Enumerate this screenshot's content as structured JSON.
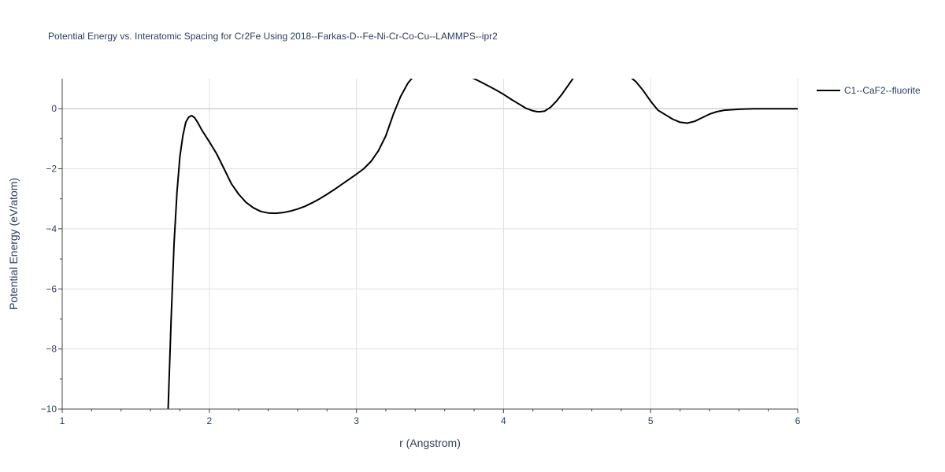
{
  "chart_data": {
    "type": "line",
    "title": "Potential Energy vs. Interatomic Spacing for Cr2Fe Using 2018--Farkas-D--Fe-Ni-Cr-Co-Cu--LAMMPS--ipr2",
    "xlabel": "r (Angstrom)",
    "ylabel": "Potential Energy (eV/atom)",
    "xlim": [
      1,
      6
    ],
    "ylim": [
      -10,
      1
    ],
    "x_ticks": [
      1,
      2,
      3,
      4,
      5,
      6
    ],
    "y_ticks": [
      0,
      -2,
      -4,
      -6,
      -8,
      -10
    ],
    "x_tick_labels": [
      "1",
      "2",
      "3",
      "4",
      "5",
      "6"
    ],
    "y_tick_labels": [
      "0",
      "−2",
      "−4",
      "−6",
      "−8",
      "−10"
    ],
    "grid": true,
    "legend_position": "top-right",
    "series": [
      {
        "name": "C1--CaF2--fluorite",
        "color": "#000000",
        "x": [
          1.72,
          1.74,
          1.76,
          1.78,
          1.8,
          1.82,
          1.84,
          1.86,
          1.88,
          1.9,
          1.92,
          1.95,
          2.0,
          2.05,
          2.1,
          2.15,
          2.2,
          2.25,
          2.3,
          2.35,
          2.4,
          2.45,
          2.5,
          2.55,
          2.6,
          2.65,
          2.7,
          2.75,
          2.8,
          2.85,
          2.9,
          2.95,
          3.0,
          3.05,
          3.1,
          3.15,
          3.2,
          3.25,
          3.3,
          3.35,
          3.4,
          3.45,
          3.5,
          3.55,
          3.6,
          3.65,
          3.7,
          3.75,
          3.8,
          3.85,
          3.9,
          3.95,
          4.0,
          4.05,
          4.1,
          4.15,
          4.2,
          4.23,
          4.25,
          4.28,
          4.32,
          4.36,
          4.4,
          4.45,
          4.5,
          4.55,
          4.6,
          4.65,
          4.7,
          4.75,
          4.8,
          4.85,
          4.9,
          4.95,
          5.0,
          5.05,
          5.1,
          5.15,
          5.2,
          5.25,
          5.3,
          5.35,
          5.4,
          5.45,
          5.5,
          5.6,
          5.7,
          5.8,
          5.9,
          6.0
        ],
        "y": [
          -10.0,
          -7.1,
          -4.5,
          -2.8,
          -1.6,
          -0.9,
          -0.45,
          -0.28,
          -0.23,
          -0.3,
          -0.45,
          -0.72,
          -1.1,
          -1.5,
          -2.0,
          -2.5,
          -2.85,
          -3.12,
          -3.3,
          -3.42,
          -3.47,
          -3.48,
          -3.46,
          -3.41,
          -3.34,
          -3.25,
          -3.13,
          -3.0,
          -2.85,
          -2.69,
          -2.52,
          -2.35,
          -2.18,
          -2.0,
          -1.75,
          -1.4,
          -0.9,
          -0.2,
          0.4,
          0.85,
          1.15,
          1.35,
          1.45,
          1.45,
          1.4,
          1.3,
          1.2,
          1.1,
          1.0,
          0.88,
          0.75,
          0.62,
          0.48,
          0.32,
          0.17,
          0.02,
          -0.07,
          -0.1,
          -0.1,
          -0.08,
          0.05,
          0.25,
          0.5,
          0.85,
          1.2,
          1.5,
          1.7,
          1.75,
          1.7,
          1.55,
          1.3,
          1.1,
          0.9,
          0.6,
          0.25,
          -0.05,
          -0.2,
          -0.35,
          -0.45,
          -0.48,
          -0.42,
          -0.3,
          -0.18,
          -0.1,
          -0.05,
          -0.02,
          0.0,
          0.0,
          0.0,
          0.0
        ]
      }
    ]
  }
}
